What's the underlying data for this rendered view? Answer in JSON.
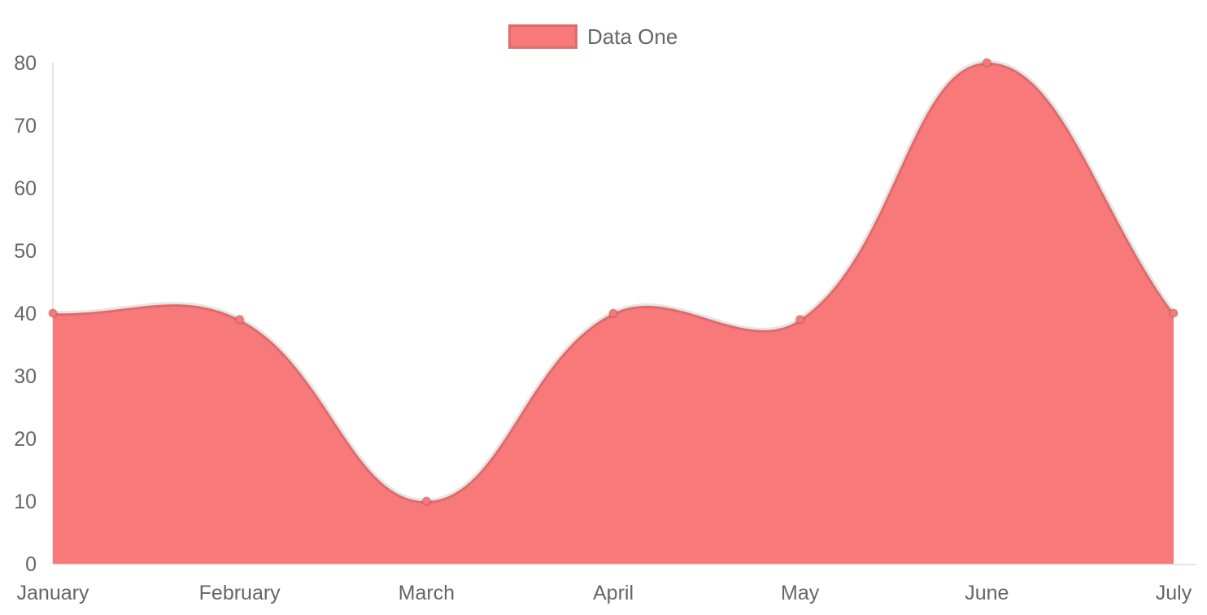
{
  "chart_data": {
    "type": "area",
    "title": "",
    "categories": [
      "January",
      "February",
      "March",
      "April",
      "May",
      "June",
      "July"
    ],
    "series": [
      {
        "name": "Data One",
        "values": [
          40,
          39,
          10,
          40,
          39,
          80,
          40
        ],
        "fill_color": "#f87979",
        "line_color": "rgba(0,0,0,0.1)",
        "line_width": 6,
        "point_color": "#f87979",
        "point_border_color": "rgba(0,0,0,0.1)",
        "point_radius": 5
      }
    ],
    "xlabel": "",
    "ylabel": "",
    "ylim": [
      0,
      80
    ],
    "y_ticks": [
      0,
      10,
      20,
      30,
      40,
      50,
      60,
      70,
      80
    ],
    "grid": false,
    "smooth": true,
    "line_tension": 0.4,
    "legend_position": "top",
    "axis_line_color": "rgba(0,0,0,0.1)",
    "tick_text_color": "#666666",
    "background_color": "#ffffff"
  }
}
